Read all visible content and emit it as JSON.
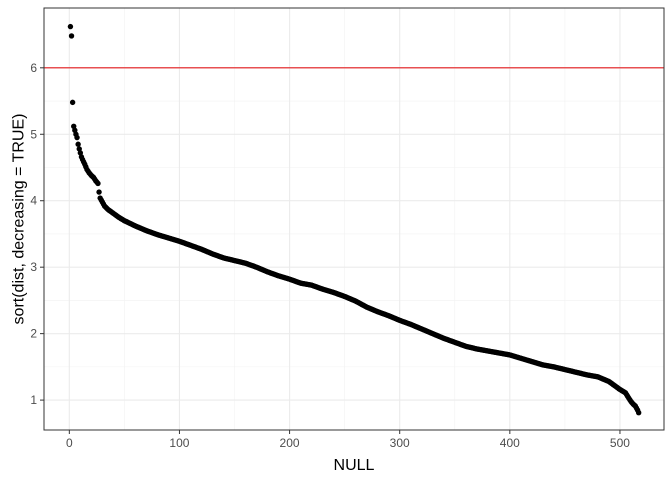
{
  "chart_data": {
    "type": "scatter",
    "title": "",
    "xlabel": "NULL",
    "ylabel": "sort(dist, decreasing = TRUE)",
    "xlim": [
      -23,
      540
    ],
    "ylim": [
      0.55,
      6.9
    ],
    "x_ticks": [
      0,
      100,
      200,
      300,
      400,
      500
    ],
    "y_ticks": [
      1,
      2,
      3,
      4,
      5,
      6
    ],
    "grid": true,
    "theme": "bw",
    "reference_line": {
      "orientation": "horizontal",
      "y": 6,
      "color": "#e41a1c"
    },
    "point_color": "#000000",
    "n_points": 517,
    "curve_knots": {
      "index": [
        1,
        2,
        3,
        4,
        5,
        6,
        7,
        8,
        9,
        10,
        11,
        12,
        14,
        16,
        18,
        20,
        22,
        24,
        26,
        27,
        28,
        30,
        32,
        35,
        40,
        45,
        50,
        60,
        70,
        80,
        90,
        100,
        110,
        120,
        130,
        140,
        150,
        160,
        170,
        180,
        190,
        200,
        210,
        220,
        230,
        240,
        250,
        260,
        270,
        280,
        290,
        300,
        310,
        320,
        330,
        340,
        350,
        360,
        370,
        380,
        390,
        400,
        410,
        420,
        430,
        440,
        450,
        460,
        470,
        480,
        490,
        500,
        505,
        508,
        510,
        512,
        514,
        516,
        517
      ],
      "value": [
        6.62,
        6.48,
        5.48,
        5.12,
        5.06,
        5.0,
        4.95,
        4.85,
        4.78,
        4.72,
        4.66,
        4.62,
        4.55,
        4.47,
        4.42,
        4.38,
        4.35,
        4.3,
        4.26,
        4.13,
        4.04,
        3.98,
        3.92,
        3.87,
        3.81,
        3.75,
        3.7,
        3.62,
        3.55,
        3.49,
        3.44,
        3.39,
        3.33,
        3.27,
        3.2,
        3.14,
        3.1,
        3.06,
        3.0,
        2.93,
        2.87,
        2.82,
        2.76,
        2.73,
        2.67,
        2.62,
        2.56,
        2.49,
        2.4,
        2.33,
        2.27,
        2.2,
        2.14,
        2.07,
        2.0,
        1.93,
        1.87,
        1.81,
        1.77,
        1.74,
        1.71,
        1.68,
        1.63,
        1.58,
        1.53,
        1.5,
        1.46,
        1.42,
        1.38,
        1.35,
        1.28,
        1.16,
        1.11,
        1.03,
        0.98,
        0.94,
        0.91,
        0.85,
        0.81
      ]
    }
  }
}
